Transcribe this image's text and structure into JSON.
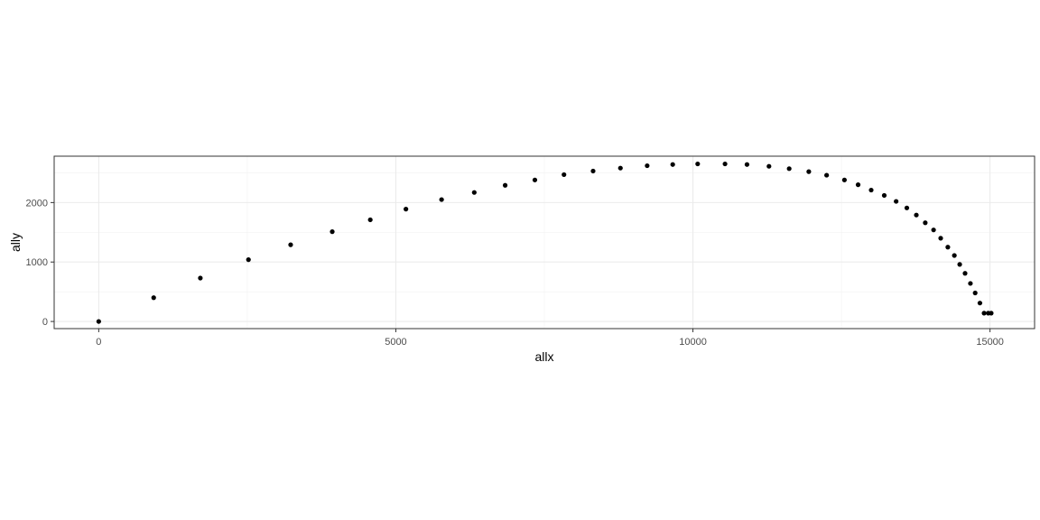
{
  "chart_data": {
    "type": "scatter",
    "title": "",
    "xlabel": "allx",
    "ylabel": "ally",
    "xlim": [
      -750,
      15750
    ],
    "ylim": [
      -120,
      2780
    ],
    "x_ticks": [
      0,
      5000,
      10000,
      15000
    ],
    "x_tick_labels": [
      "0",
      "5000",
      "10000",
      "15000"
    ],
    "y_ticks": [
      0,
      1000,
      2000
    ],
    "y_tick_labels": [
      "0",
      "1000",
      "2000"
    ],
    "grid": true,
    "theme": "black-and-white",
    "point_color": "#000000",
    "series": [
      {
        "x": [
          0,
          925,
          1710,
          2520,
          3230,
          3930,
          4570,
          5170,
          5770,
          6320,
          6840,
          7340,
          7830,
          8320,
          8780,
          9230,
          9660,
          10080,
          10540,
          10910,
          11280,
          11620,
          11950,
          12250,
          12550,
          12780,
          13000,
          13220,
          13420,
          13600,
          13760,
          13910,
          14050,
          14170,
          14290,
          14400,
          14490,
          14580,
          14670,
          14750,
          14830,
          14900,
          14970,
          15020
        ],
        "y": [
          0,
          400,
          730,
          1040,
          1290,
          1510,
          1710,
          1890,
          2050,
          2170,
          2290,
          2380,
          2470,
          2530,
          2580,
          2620,
          2640,
          2650,
          2650,
          2640,
          2610,
          2570,
          2520,
          2460,
          2380,
          2300,
          2210,
          2120,
          2020,
          1910,
          1790,
          1660,
          1540,
          1400,
          1250,
          1110,
          960,
          810,
          640,
          480,
          310,
          140,
          140,
          140
        ]
      }
    ]
  }
}
